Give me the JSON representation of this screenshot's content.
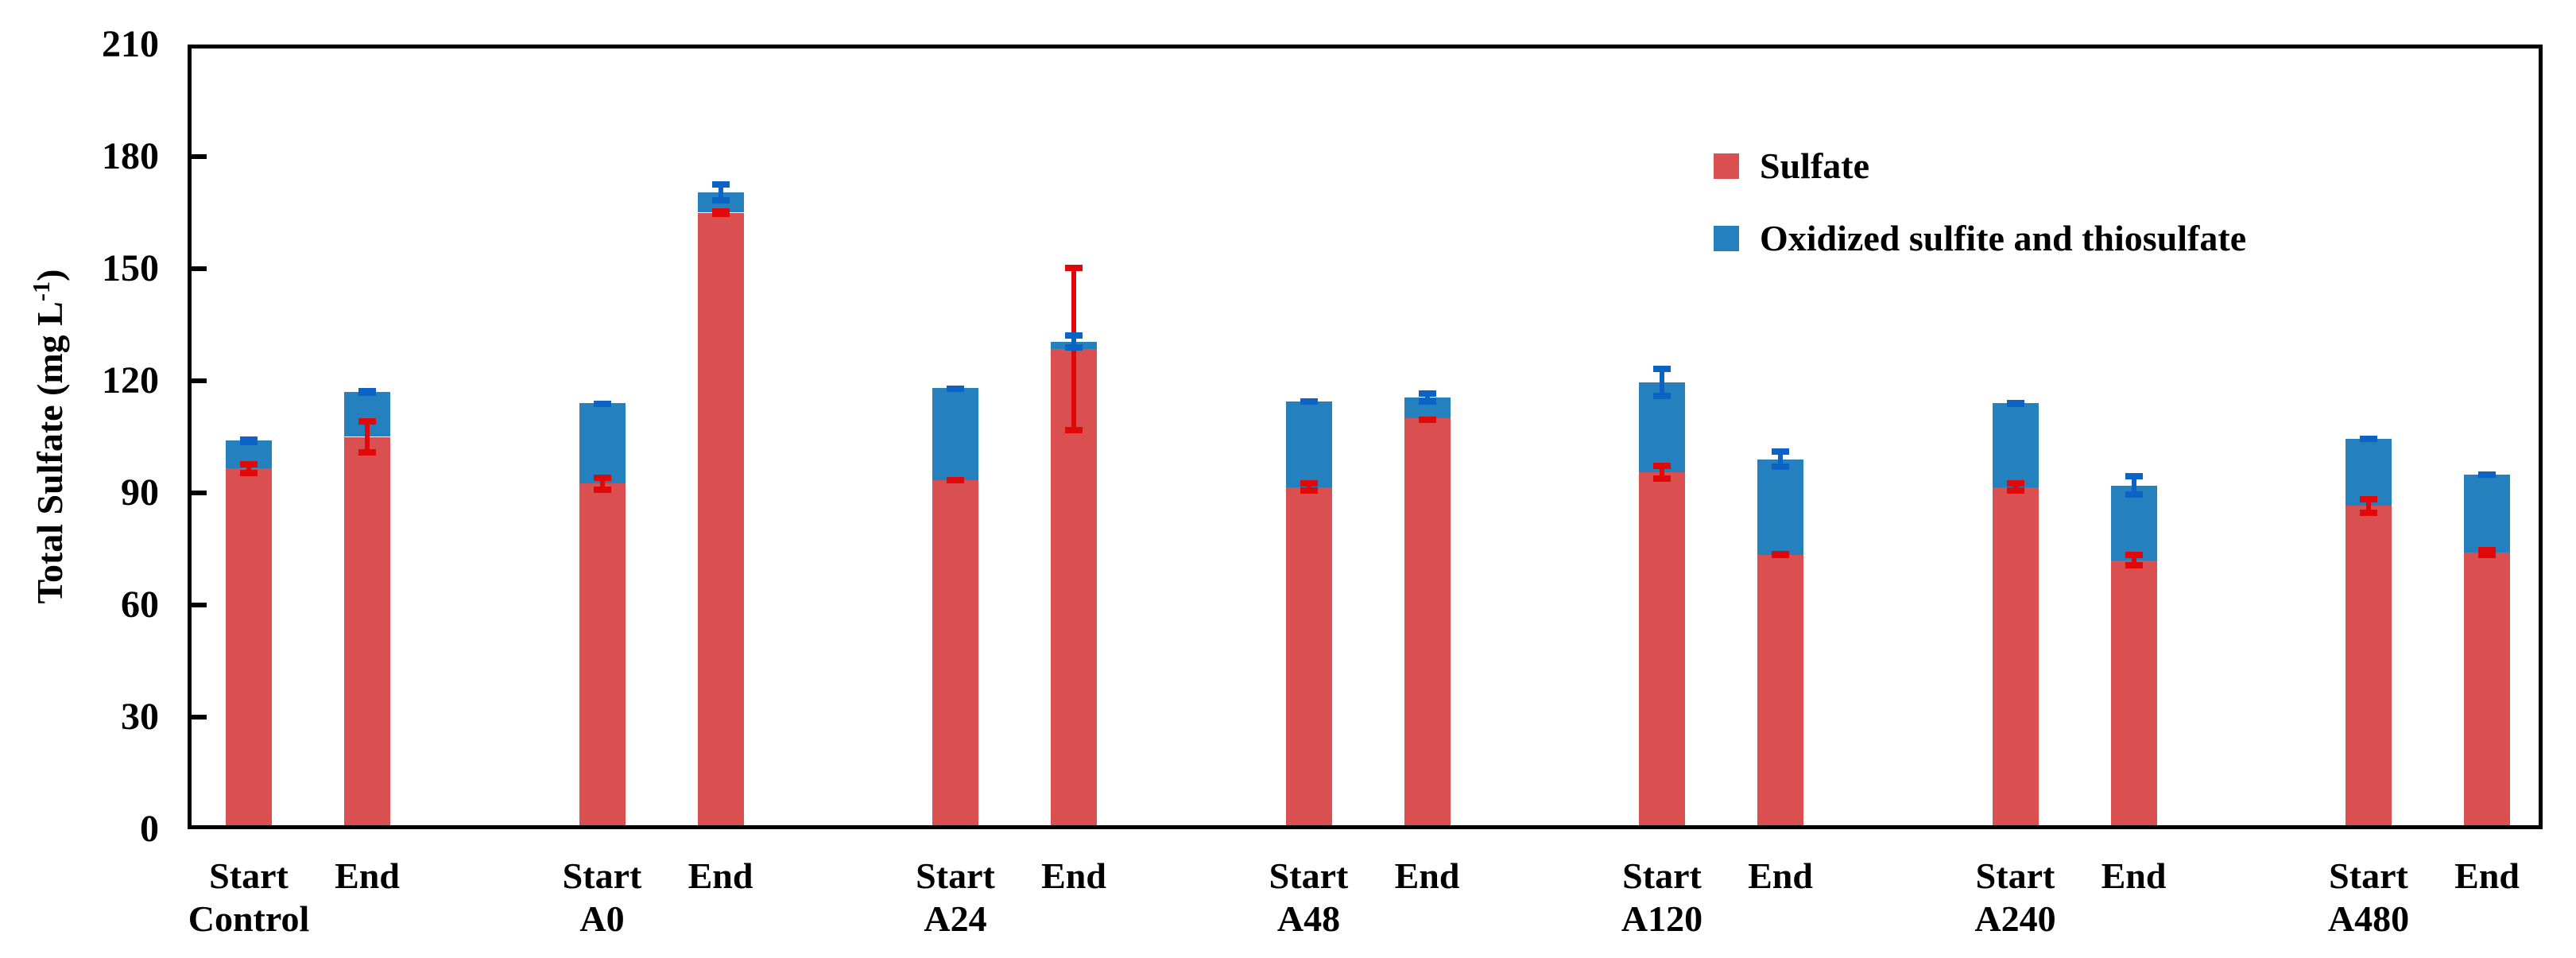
{
  "page": {
    "background": "#ffffff"
  },
  "y_axis": {
    "title_prefix": "Total Sulfate (mg L",
    "title_sup": "-1",
    "title_suffix": ")",
    "min": 0,
    "max": 210,
    "tick_step": 30,
    "ticks": [
      "0",
      "30",
      "60",
      "90",
      "120",
      "150",
      "180",
      "210"
    ]
  },
  "legend": {
    "items": [
      {
        "label": "Sulfate",
        "color": "#DA5050"
      },
      {
        "label": "Oxidized sulfite and thiosulfate",
        "color": "#2481BE"
      }
    ]
  },
  "colors": {
    "sulfate_bar": "#DA5050",
    "oxidized_bar": "#2481BE",
    "sulfate_error": "#E00808",
    "oxidized_error": "#0B63C5",
    "axis": "#000000",
    "background": "#FFFFFF"
  },
  "chart_data": {
    "type": "bar",
    "stacked": true,
    "title": "",
    "xlabel": "",
    "ylabel": "Total Sulfate (mg L-1)",
    "ylim": [
      0,
      210
    ],
    "yticks": [
      0,
      30,
      60,
      90,
      120,
      150,
      180,
      210
    ],
    "grid": false,
    "legend_position": "upper-right-inside",
    "categories": [
      "Control",
      "A0",
      "A24",
      "A48",
      "A120",
      "A240",
      "A480"
    ],
    "phases": [
      "Start",
      "End"
    ],
    "series_names": [
      "Sulfate",
      "Oxidized sulfite and thiosulfate"
    ],
    "bars": [
      {
        "group": "Control",
        "phase": "Start",
        "sulfate": 96.5,
        "oxidized": 7.5,
        "total": 104.0,
        "sulfate_err": 2.0,
        "total_err": 1.2
      },
      {
        "group": "Control",
        "phase": "End",
        "sulfate": 105.0,
        "oxidized": 12.0,
        "total": 117.0,
        "sulfate_err": 5.0,
        "total_err": 1.0
      },
      {
        "group": "A0",
        "phase": "Start",
        "sulfate": 92.5,
        "oxidized": 21.5,
        "total": 114.0,
        "sulfate_err": 2.5,
        "total_err": 0.6
      },
      {
        "group": "A0",
        "phase": "End",
        "sulfate": 165.0,
        "oxidized": 5.5,
        "total": 170.5,
        "sulfate_err": 1.2,
        "total_err": 3.0
      },
      {
        "group": "A24",
        "phase": "Start",
        "sulfate": 93.5,
        "oxidized": 24.5,
        "total": 118.0,
        "sulfate_err": 0.8,
        "total_err": 0.7
      },
      {
        "group": "A24",
        "phase": "End",
        "sulfate": 128.5,
        "oxidized": 2.0,
        "total": 130.5,
        "sulfate_err": 22.5,
        "total_err": 2.5
      },
      {
        "group": "A48",
        "phase": "Start",
        "sulfate": 91.5,
        "oxidized": 23.0,
        "total": 114.5,
        "sulfate_err": 1.8,
        "total_err": 0.9
      },
      {
        "group": "A48",
        "phase": "End",
        "sulfate": 110.0,
        "oxidized": 5.5,
        "total": 115.5,
        "sulfate_err": 0.5,
        "total_err": 1.9
      },
      {
        "group": "A120",
        "phase": "Start",
        "sulfate": 95.5,
        "oxidized": 24.0,
        "total": 119.5,
        "sulfate_err": 2.5,
        "total_err": 4.5
      },
      {
        "group": "A120",
        "phase": "End",
        "sulfate": 73.5,
        "oxidized": 25.5,
        "total": 99.0,
        "sulfate_err": 1.0,
        "total_err": 2.9
      },
      {
        "group": "A240",
        "phase": "Start",
        "sulfate": 91.5,
        "oxidized": 22.5,
        "total": 114.0,
        "sulfate_err": 1.8,
        "total_err": 1.0
      },
      {
        "group": "A240",
        "phase": "End",
        "sulfate": 72.0,
        "oxidized": 20.0,
        "total": 92.0,
        "sulfate_err": 2.3,
        "total_err": 3.3
      },
      {
        "group": "A480",
        "phase": "Start",
        "sulfate": 86.5,
        "oxidized": 18.0,
        "total": 104.5,
        "sulfate_err": 2.7,
        "total_err": 0.9
      },
      {
        "group": "A480",
        "phase": "End",
        "sulfate": 74.0,
        "oxidized": 21.0,
        "total": 95.0,
        "sulfate_err": 1.5,
        "total_err": 0.8
      }
    ]
  }
}
